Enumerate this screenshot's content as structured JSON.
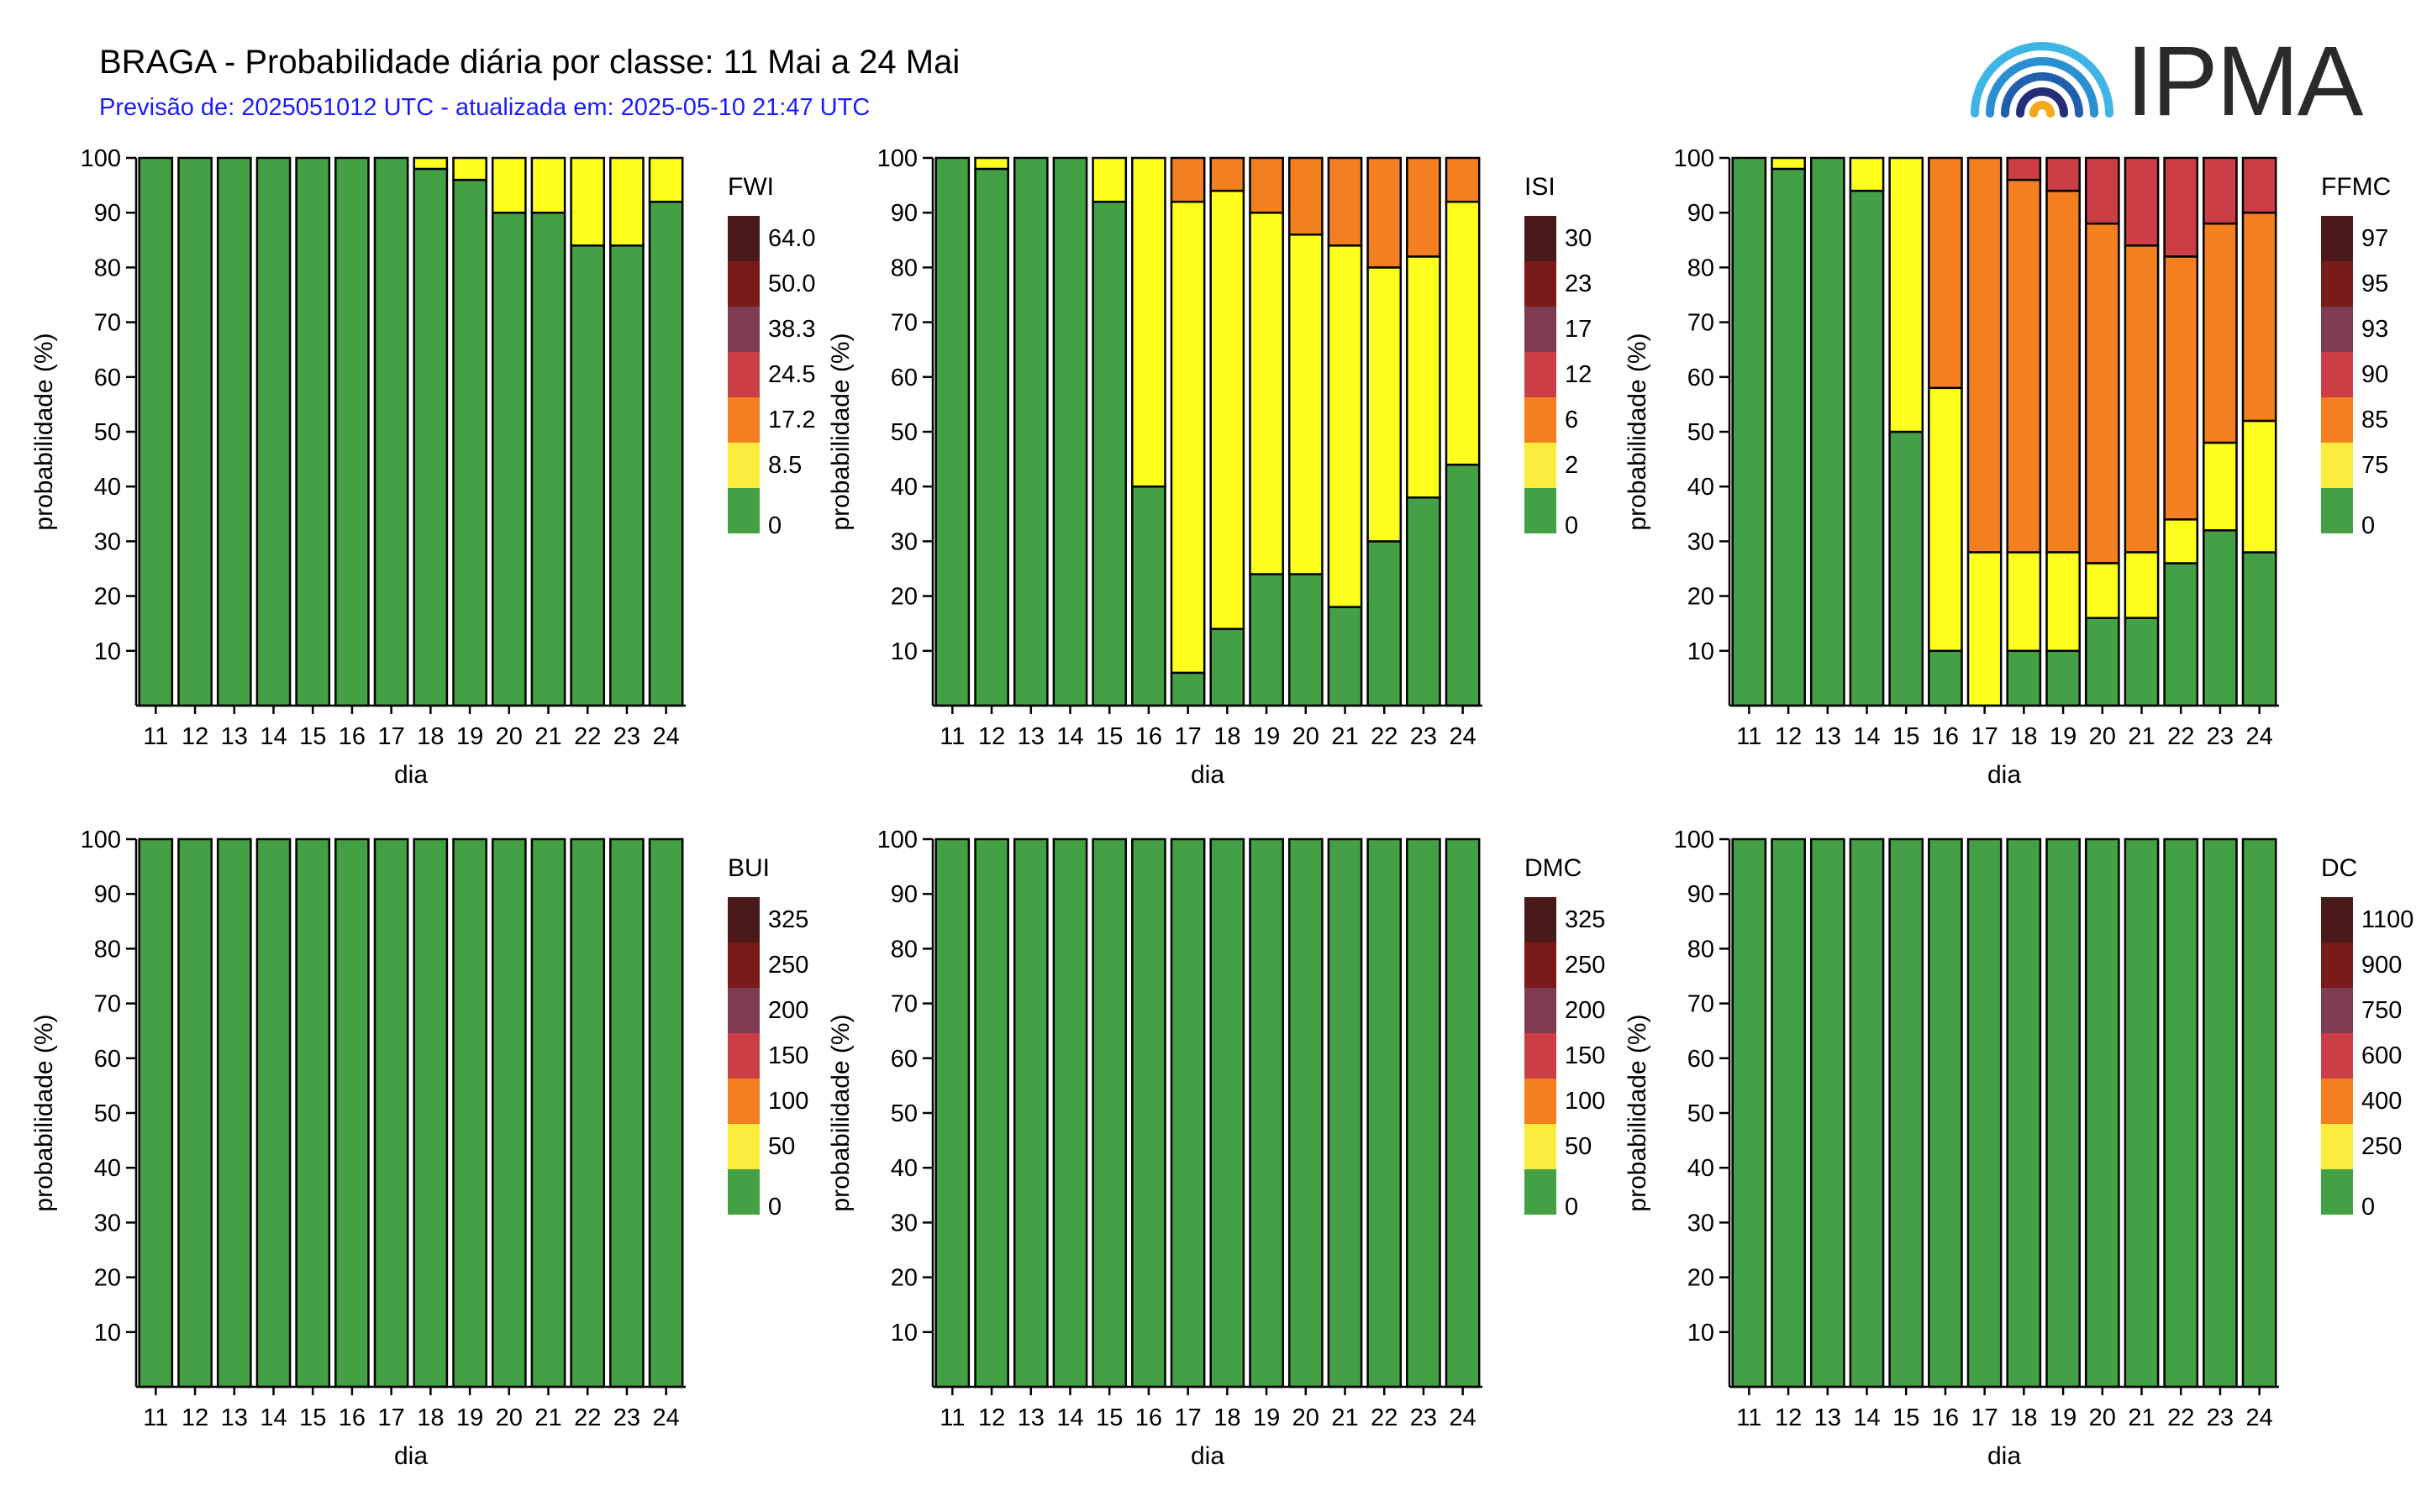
{
  "title": "BRAGA - Probabilidade diária por classe: 11 Mai a 24 Mai",
  "subtitle": "Previsão de: 2025051012 UTC - atualizada em: 2025-05-10 21:47 UTC",
  "logo_text": "IPMA",
  "class_colors": [
    "#44a044",
    "#fbeb3c",
    "#f47f20",
    "#cc3e46",
    "#7e3c50",
    "#7a1a1a",
    "#4a1a1a"
  ],
  "bar_colors": [
    "#44a044",
    "#ffff1e",
    "#f47f20",
    "#cc3e46",
    "#7a1a1a",
    "#4a1a1a",
    "#2a0f0f"
  ],
  "chart_data": [
    {
      "type": "bar",
      "stacked": true,
      "title": "FWI",
      "xlabel": "dia",
      "ylabel": "probabilidade (%)",
      "ylim": [
        0,
        100
      ],
      "yticks": [
        10,
        20,
        30,
        40,
        50,
        60,
        70,
        80,
        90,
        100
      ],
      "categories": [
        "11",
        "12",
        "13",
        "14",
        "15",
        "16",
        "17",
        "18",
        "19",
        "20",
        "21",
        "22",
        "23",
        "24"
      ],
      "legend_labels": [
        "0",
        "8.5",
        "17.2",
        "24.5",
        "38.3",
        "50.0",
        "64.0"
      ],
      "series": [
        {
          "values": [
            100,
            100,
            100,
            100,
            100,
            100,
            100,
            98,
            96,
            90,
            90,
            84,
            84,
            92
          ]
        },
        {
          "values": [
            0,
            0,
            0,
            0,
            0,
            0,
            0,
            2,
            4,
            10,
            10,
            16,
            16,
            8
          ]
        }
      ]
    },
    {
      "type": "bar",
      "stacked": true,
      "title": "ISI",
      "xlabel": "dia",
      "ylabel": "probabilidade (%)",
      "ylim": [
        0,
        100
      ],
      "yticks": [
        10,
        20,
        30,
        40,
        50,
        60,
        70,
        80,
        90,
        100
      ],
      "categories": [
        "11",
        "12",
        "13",
        "14",
        "15",
        "16",
        "17",
        "18",
        "19",
        "20",
        "21",
        "22",
        "23",
        "24"
      ],
      "legend_labels": [
        "0",
        "2",
        "6",
        "12",
        "17",
        "23",
        "30"
      ],
      "series": [
        {
          "values": [
            100,
            98,
            100,
            100,
            92,
            40,
            6,
            14,
            24,
            24,
            18,
            30,
            38,
            44
          ]
        },
        {
          "values": [
            0,
            2,
            0,
            0,
            8,
            60,
            86,
            80,
            66,
            62,
            66,
            50,
            44,
            48
          ]
        },
        {
          "values": [
            0,
            0,
            0,
            0,
            0,
            0,
            8,
            6,
            10,
            14,
            16,
            20,
            18,
            8
          ]
        }
      ]
    },
    {
      "type": "bar",
      "stacked": true,
      "title": "FFMC",
      "xlabel": "dia",
      "ylabel": "probabilidade (%)",
      "ylim": [
        0,
        100
      ],
      "yticks": [
        10,
        20,
        30,
        40,
        50,
        60,
        70,
        80,
        90,
        100
      ],
      "categories": [
        "11",
        "12",
        "13",
        "14",
        "15",
        "16",
        "17",
        "18",
        "19",
        "20",
        "21",
        "22",
        "23",
        "24"
      ],
      "legend_labels": [
        "0",
        "75",
        "85",
        "90",
        "93",
        "95",
        "97"
      ],
      "series": [
        {
          "values": [
            100,
            98,
            100,
            94,
            50,
            10,
            0,
            10,
            10,
            16,
            16,
            26,
            32,
            28
          ]
        },
        {
          "values": [
            0,
            2,
            0,
            6,
            50,
            48,
            28,
            18,
            18,
            10,
            12,
            8,
            16,
            24
          ]
        },
        {
          "values": [
            0,
            0,
            0,
            0,
            0,
            42,
            72,
            68,
            66,
            62,
            56,
            48,
            40,
            38
          ]
        },
        {
          "values": [
            0,
            0,
            0,
            0,
            0,
            0,
            0,
            4,
            6,
            12,
            16,
            18,
            12,
            10
          ]
        }
      ]
    },
    {
      "type": "bar",
      "stacked": true,
      "title": "BUI",
      "xlabel": "dia",
      "ylabel": "probabilidade (%)",
      "ylim": [
        0,
        100
      ],
      "yticks": [
        10,
        20,
        30,
        40,
        50,
        60,
        70,
        80,
        90,
        100
      ],
      "categories": [
        "11",
        "12",
        "13",
        "14",
        "15",
        "16",
        "17",
        "18",
        "19",
        "20",
        "21",
        "22",
        "23",
        "24"
      ],
      "legend_labels": [
        "0",
        "50",
        "100",
        "150",
        "200",
        "250",
        "325"
      ],
      "series": [
        {
          "values": [
            100,
            100,
            100,
            100,
            100,
            100,
            100,
            100,
            100,
            100,
            100,
            100,
            100,
            100
          ]
        }
      ]
    },
    {
      "type": "bar",
      "stacked": true,
      "title": "DMC",
      "xlabel": "dia",
      "ylabel": "probabilidade (%)",
      "ylim": [
        0,
        100
      ],
      "yticks": [
        10,
        20,
        30,
        40,
        50,
        60,
        70,
        80,
        90,
        100
      ],
      "categories": [
        "11",
        "12",
        "13",
        "14",
        "15",
        "16",
        "17",
        "18",
        "19",
        "20",
        "21",
        "22",
        "23",
        "24"
      ],
      "legend_labels": [
        "0",
        "50",
        "100",
        "150",
        "200",
        "250",
        "325"
      ],
      "series": [
        {
          "values": [
            100,
            100,
            100,
            100,
            100,
            100,
            100,
            100,
            100,
            100,
            100,
            100,
            100,
            100
          ]
        }
      ]
    },
    {
      "type": "bar",
      "stacked": true,
      "title": "DC",
      "xlabel": "dia",
      "ylabel": "probabilidade (%)",
      "ylim": [
        0,
        100
      ],
      "yticks": [
        10,
        20,
        30,
        40,
        50,
        60,
        70,
        80,
        90,
        100
      ],
      "categories": [
        "11",
        "12",
        "13",
        "14",
        "15",
        "16",
        "17",
        "18",
        "19",
        "20",
        "21",
        "22",
        "23",
        "24"
      ],
      "legend_labels": [
        "0",
        "250",
        "400",
        "600",
        "750",
        "900",
        "1100"
      ],
      "series": [
        {
          "values": [
            100,
            100,
            100,
            100,
            100,
            100,
            100,
            100,
            100,
            100,
            100,
            100,
            100,
            100
          ]
        }
      ]
    }
  ]
}
